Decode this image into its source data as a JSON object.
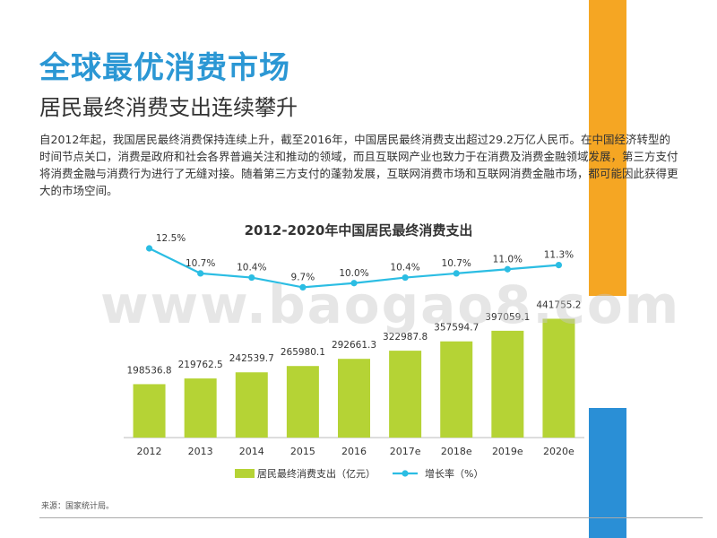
{
  "title": "全球最优消费市场",
  "subtitle": "居民最终消费支出连续攀升",
  "body": "自2012年起，我国居民最终消费保持连续上升，截至2016年，中国居民最终消费支出超过29.2万亿人民币。在中国经济转型的时间节点关口，消费是政府和社会各界普遍关注和推动的领域，而且互联网产业也致力于在消费及消费金融领域发展，第三方支付将消费金融与消费行为进行了无缝对接。随着第三方支付的蓬勃发展，互联网消费市场和互联网消费金融市场，都可能因此获得更大的市场空间。",
  "source": "来源：国家统计局。",
  "watermark": "www.baogao8.com",
  "colors": {
    "bar": "#b5d335",
    "line": "#2bbde3",
    "title": "#2b97d4",
    "orange": "#f5a623",
    "blue": "#2a8fd6"
  },
  "chart_data": {
    "type": "bar",
    "title": "2012-2020年中国居民最终消费支出",
    "categories": [
      "2012",
      "2013",
      "2014",
      "2015",
      "2016",
      "2017e",
      "2018e",
      "2019e",
      "2020e"
    ],
    "series": [
      {
        "name": "居民最终消费支出（亿元）",
        "type": "bar",
        "values": [
          198536.8,
          219762.5,
          242539.7,
          265980.1,
          292661.3,
          322987.8,
          357594.7,
          397059.1,
          441755.2
        ],
        "labels": [
          "198536.8",
          "219762.5",
          "242539.7",
          "265980.1",
          "292661.3",
          "322987.8",
          "357594.7",
          "397059.1",
          "441755.2"
        ]
      },
      {
        "name": "增长率（%）",
        "type": "line",
        "values": [
          12.5,
          10.7,
          10.4,
          9.7,
          10.0,
          10.4,
          10.7,
          11.0,
          11.3
        ],
        "labels": [
          "12.5%",
          "10.7%",
          "10.4%",
          "9.7%",
          "10.0%",
          "10.4%",
          "10.7%",
          "11.0%",
          "11.3%"
        ]
      }
    ],
    "legend_position": "bottom",
    "grid": false
  }
}
